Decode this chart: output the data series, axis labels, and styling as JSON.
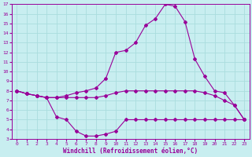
{
  "xlabel": "Windchill (Refroidissement éolien,°C)",
  "background_color": "#c8eef0",
  "grid_color": "#aadddd",
  "line_color": "#990099",
  "xlim": [
    -0.5,
    23.5
  ],
  "ylim": [
    3,
    17
  ],
  "xticks": [
    0,
    1,
    2,
    3,
    4,
    5,
    6,
    7,
    8,
    9,
    10,
    11,
    12,
    13,
    14,
    15,
    16,
    17,
    18,
    19,
    20,
    21,
    22,
    23
  ],
  "yticks": [
    3,
    4,
    5,
    6,
    7,
    8,
    9,
    10,
    11,
    12,
    13,
    14,
    15,
    16,
    17
  ],
  "curve_bottom_x": [
    0,
    1,
    2,
    3,
    4,
    5,
    6,
    7,
    8,
    9,
    10,
    11,
    12,
    13,
    14,
    15,
    16,
    17,
    18,
    19,
    20,
    21,
    22,
    23
  ],
  "curve_bottom_y": [
    8.0,
    7.7,
    7.5,
    7.3,
    5.3,
    5.0,
    3.8,
    3.3,
    3.3,
    3.5,
    3.8,
    5.0,
    5.0,
    5.0,
    5.0,
    5.0,
    5.0,
    5.0,
    5.0,
    5.0,
    5.0,
    5.0,
    5.0,
    5.0
  ],
  "curve_mid_x": [
    0,
    1,
    2,
    3,
    4,
    5,
    6,
    7,
    8,
    9,
    10,
    11,
    12,
    13,
    14,
    15,
    16,
    17,
    18,
    19,
    20,
    21,
    22,
    23
  ],
  "curve_mid_y": [
    8.0,
    7.7,
    7.5,
    7.3,
    7.3,
    7.3,
    7.3,
    7.3,
    7.3,
    7.5,
    7.8,
    8.0,
    8.0,
    8.0,
    8.0,
    8.0,
    8.0,
    8.0,
    8.0,
    7.8,
    7.5,
    7.0,
    6.5,
    5.0
  ],
  "curve_top_x": [
    0,
    1,
    2,
    3,
    4,
    5,
    6,
    7,
    8,
    9,
    10,
    11,
    12,
    13,
    14,
    15,
    16,
    17,
    18,
    19,
    20,
    21,
    22,
    23
  ],
  "curve_top_y": [
    8.0,
    7.7,
    7.5,
    7.3,
    7.3,
    7.5,
    7.8,
    8.0,
    8.3,
    9.3,
    12.0,
    12.2,
    13.0,
    14.8,
    15.5,
    17.0,
    16.8,
    15.2,
    11.3,
    9.5,
    8.0,
    7.8,
    6.5,
    5.0
  ]
}
